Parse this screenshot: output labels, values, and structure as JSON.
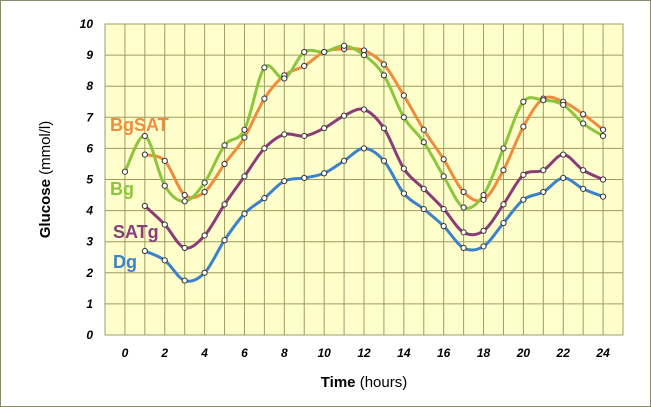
{
  "chart_data": {
    "type": "line",
    "xlabel_bold": "Time",
    "xlabel_rest": " (hours)",
    "ylabel_bold": "Glucose",
    "ylabel_rest": " (mmol/l)",
    "xlim": [
      -1,
      25
    ],
    "ylim": [
      0,
      10
    ],
    "xticks": [
      "0",
      "2",
      "4",
      "6",
      "8",
      "10",
      "12",
      "14",
      "16",
      "18",
      "20",
      "22",
      "24"
    ],
    "yticks": [
      "0",
      "1",
      "2",
      "3",
      "4",
      "5",
      "6",
      "7",
      "8",
      "9",
      "10"
    ],
    "grid": true,
    "plot_background": "#ffffcc",
    "grid_color": "#9c9c60",
    "series": [
      {
        "name": "BgSAT",
        "color": "#f08c3c",
        "x": [
          1,
          2,
          3,
          4,
          5,
          6,
          7,
          8,
          9,
          10,
          11,
          12,
          13,
          14,
          15,
          16,
          17,
          18,
          19,
          20,
          21,
          22,
          23,
          24
        ],
        "values": [
          5.8,
          5.6,
          4.5,
          4.6,
          5.5,
          6.35,
          7.6,
          8.35,
          8.65,
          9.1,
          9.2,
          9.15,
          8.7,
          7.7,
          6.6,
          5.65,
          4.6,
          4.35,
          5.3,
          6.7,
          7.6,
          7.5,
          7.1,
          6.6
        ]
      },
      {
        "name": "Bg",
        "color": "#8cc63c",
        "x": [
          0,
          1,
          2,
          3,
          4,
          5,
          6,
          7,
          8,
          9,
          10,
          11,
          12,
          13,
          14,
          15,
          16,
          17,
          18,
          19,
          20,
          21,
          22,
          23,
          24
        ],
        "values": [
          5.25,
          6.4,
          4.8,
          4.3,
          4.9,
          6.1,
          6.6,
          8.6,
          8.25,
          9.1,
          9.1,
          9.3,
          9.0,
          8.35,
          7.0,
          6.2,
          5.1,
          4.1,
          4.5,
          6.0,
          7.5,
          7.55,
          7.4,
          6.8,
          6.4
        ]
      },
      {
        "name": "SATg",
        "color": "#8c3c78",
        "x": [
          1,
          2,
          3,
          4,
          5,
          6,
          7,
          8,
          9,
          10,
          11,
          12,
          13,
          14,
          15,
          16,
          17,
          18,
          19,
          20,
          21,
          22,
          23,
          24
        ],
        "values": [
          4.15,
          3.55,
          2.8,
          3.2,
          4.2,
          5.1,
          6.0,
          6.45,
          6.4,
          6.65,
          7.05,
          7.25,
          6.65,
          5.35,
          4.7,
          4.05,
          3.3,
          3.35,
          4.2,
          5.15,
          5.3,
          5.8,
          5.3,
          5.0
        ]
      },
      {
        "name": "Dg",
        "color": "#3c82c8",
        "x": [
          1,
          2,
          3,
          4,
          5,
          6,
          7,
          8,
          9,
          10,
          11,
          12,
          13,
          14,
          15,
          16,
          17,
          18,
          19,
          20,
          21,
          22,
          23,
          24
        ],
        "values": [
          2.7,
          2.4,
          1.75,
          2.0,
          3.05,
          3.9,
          4.4,
          4.95,
          5.05,
          5.2,
          5.6,
          6.0,
          5.6,
          4.55,
          4.05,
          3.5,
          2.8,
          2.85,
          3.6,
          4.35,
          4.6,
          5.05,
          4.7,
          4.45
        ]
      }
    ]
  }
}
